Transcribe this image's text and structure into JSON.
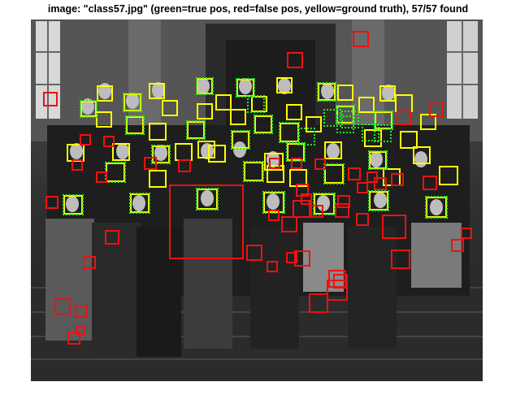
{
  "figure": {
    "title": "image: \"class57.jpg\" (green=true pos, red=false pos, yellow=ground truth), 57/57 found",
    "legend": {
      "true_positive_color": "#22ee22",
      "false_positive_color": "#ee1111",
      "ground_truth_color": "#ffff00"
    }
  },
  "detections": {
    "ground_truth_count": 57,
    "found_count": 57
  }
}
